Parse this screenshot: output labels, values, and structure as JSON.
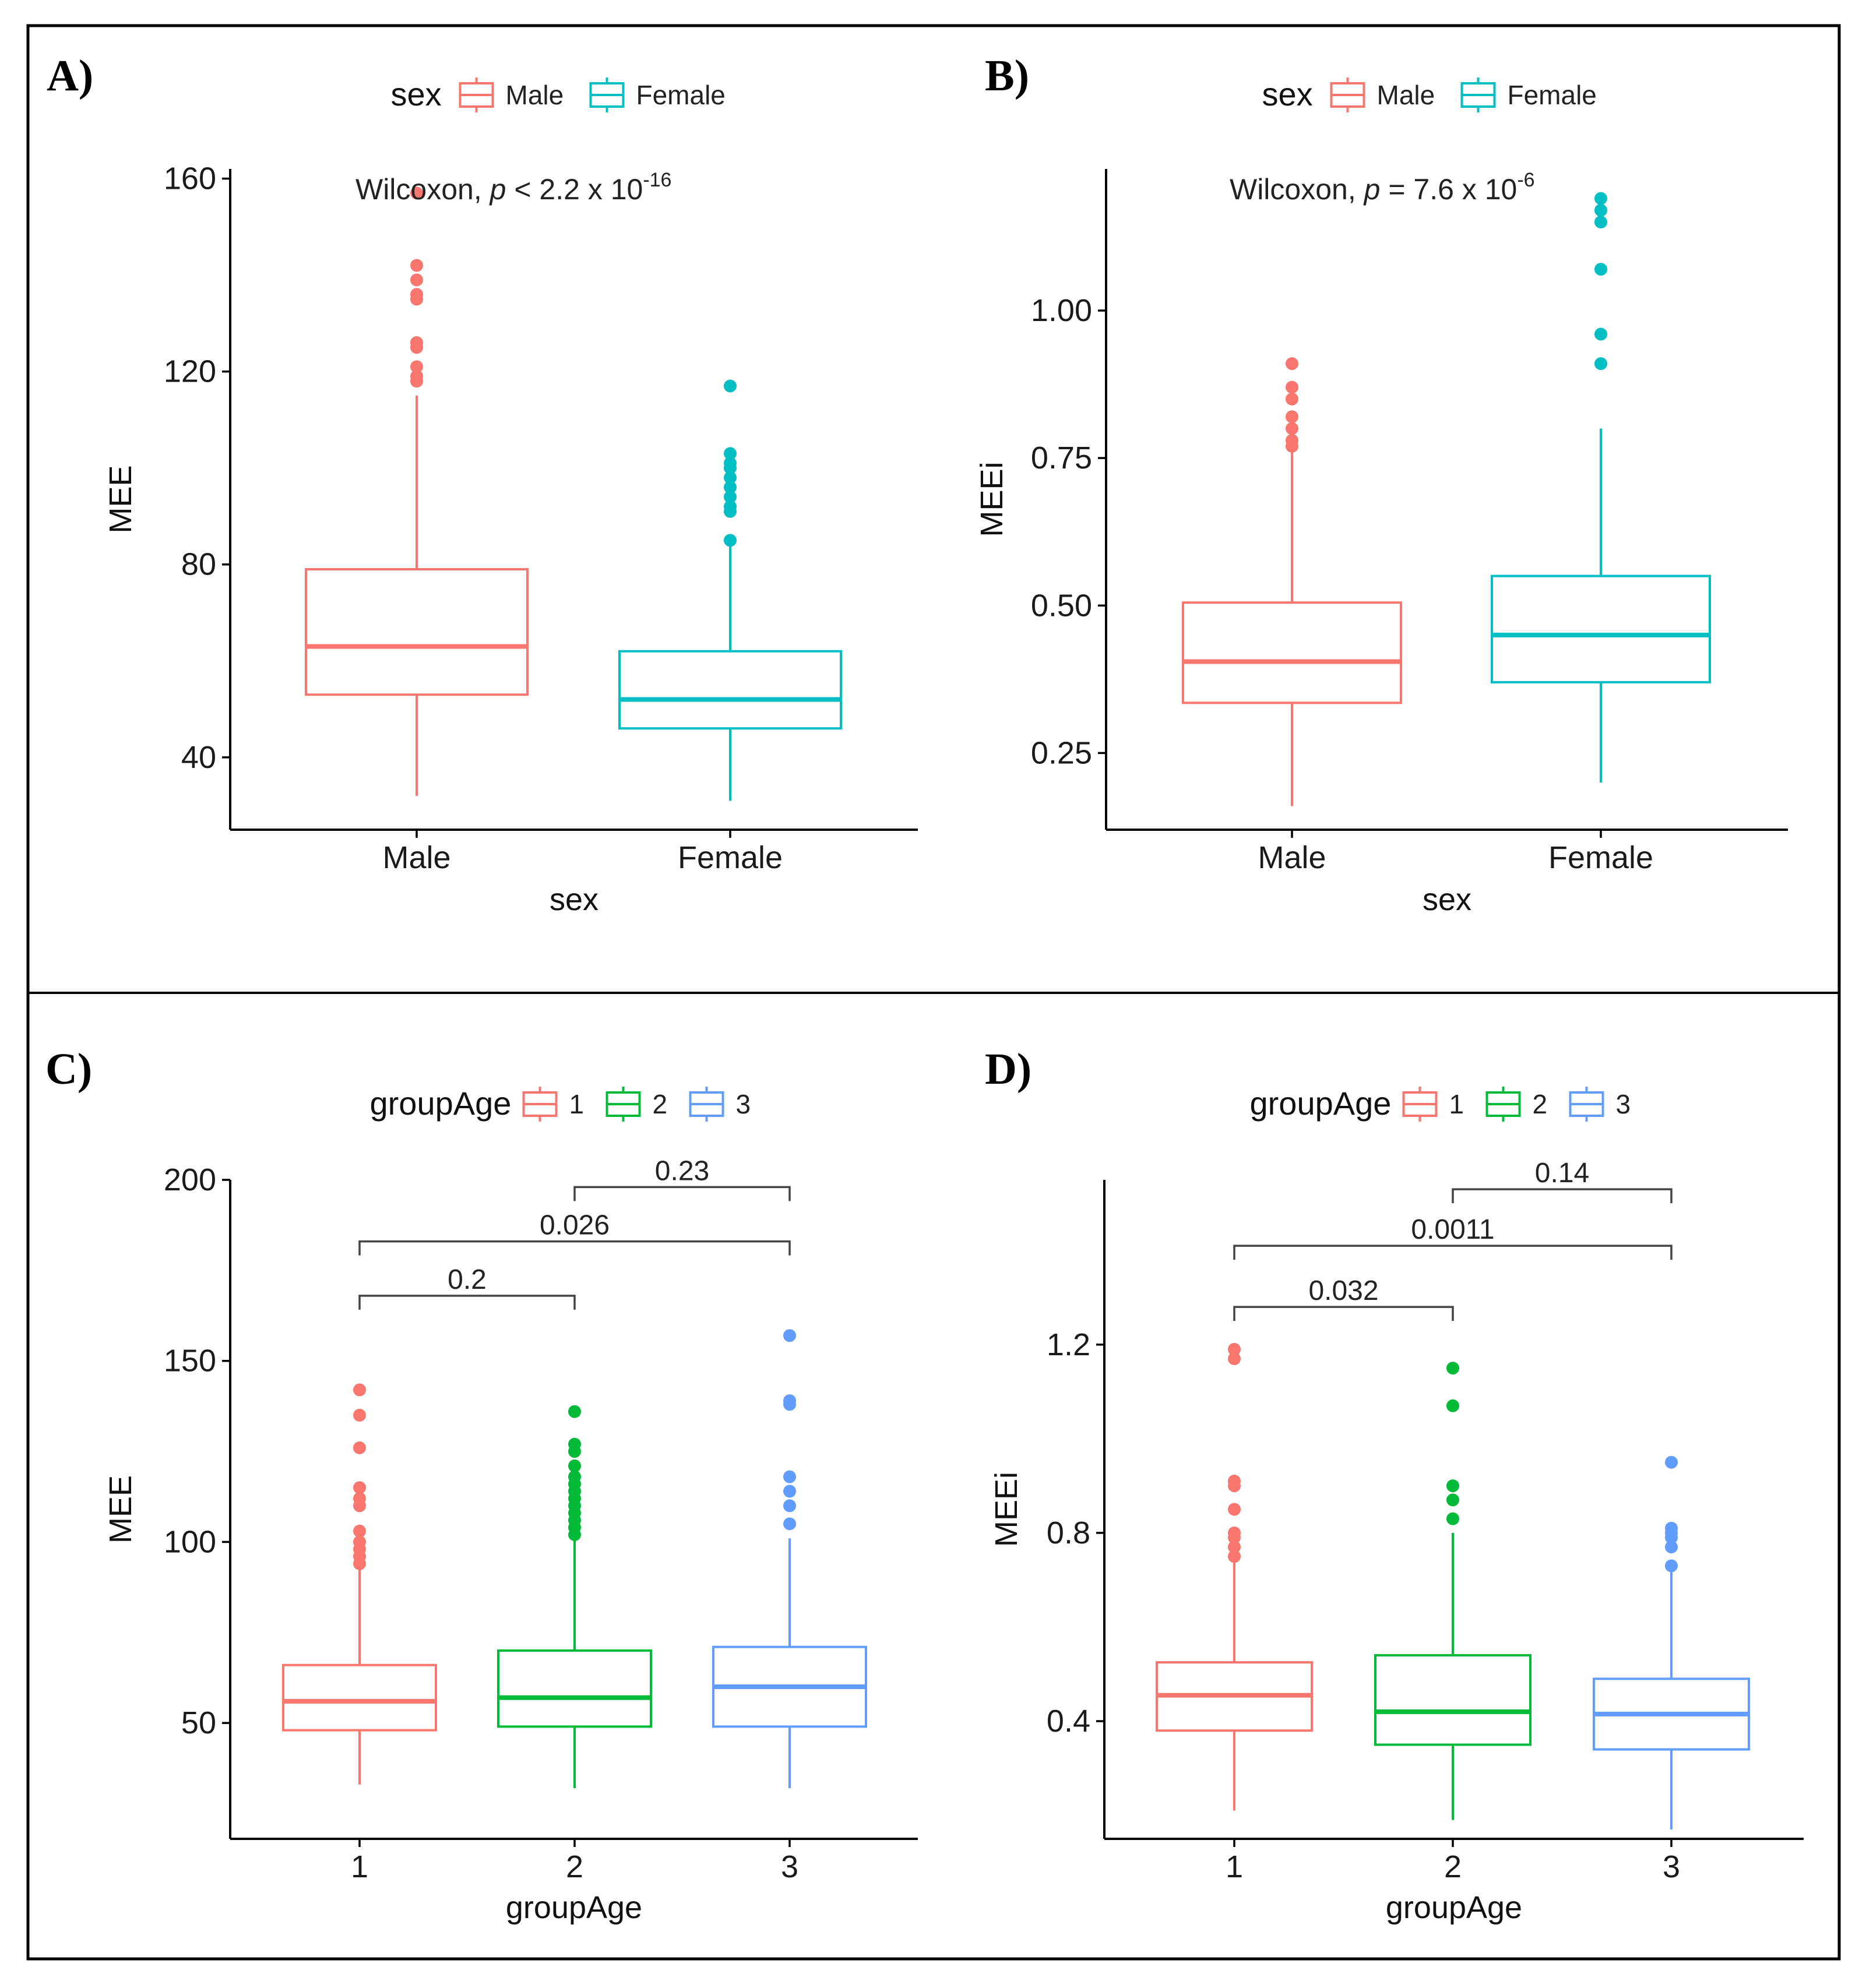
{
  "colors": {
    "Male": "#F8766D",
    "Female": "#00BFC4",
    "1": "#F8766D",
    "2": "#00BA38",
    "3": "#619CFF"
  },
  "chart_data": [
    {
      "panel": "A)",
      "type": "box",
      "xlabel": "sex",
      "ylabel": "MEE",
      "ylim": [
        25,
        162
      ],
      "yticks": [
        40,
        80,
        120,
        160
      ],
      "ytick_labels": [
        "40",
        "80",
        "120",
        "160"
      ],
      "legend": {
        "title": "sex",
        "entries": [
          "Male",
          "Female"
        ],
        "position": "top"
      },
      "annotation": {
        "test": "Wilcoxon,",
        "p_prefix": "p",
        "p_text": " < 2.2 x 10",
        "p_exp": "-16"
      },
      "categories": [
        "Male",
        "Female"
      ],
      "series": [
        {
          "name": "Male",
          "whisker_low": 32,
          "q1": 53,
          "median": 63,
          "q3": 79,
          "whisker_high": 115,
          "outliers": [
            118,
            119,
            121,
            125,
            126,
            135,
            136,
            139,
            142,
            157
          ]
        },
        {
          "name": "Female",
          "whisker_low": 31,
          "q1": 46,
          "median": 52,
          "q3": 62,
          "whisker_high": 85,
          "outliers": [
            85,
            91,
            92,
            94,
            96,
            98,
            100,
            101,
            103,
            117
          ]
        }
      ],
      "brackets": []
    },
    {
      "panel": "B)",
      "type": "box",
      "xlabel": "sex",
      "ylabel": "MEEi",
      "ylim": [
        0.12,
        1.24
      ],
      "yticks": [
        0.25,
        0.5,
        0.75,
        1.0
      ],
      "ytick_labels": [
        "0.25",
        "0.50",
        "0.75",
        "1.00"
      ],
      "legend": {
        "title": "sex",
        "entries": [
          "Male",
          "Female"
        ],
        "position": "top"
      },
      "annotation": {
        "test": "Wilcoxon,",
        "p_prefix": "p",
        "p_text": " = 7.6 x 10",
        "p_exp": "-6"
      },
      "categories": [
        "Male",
        "Female"
      ],
      "series": [
        {
          "name": "Male",
          "whisker_low": 0.16,
          "q1": 0.335,
          "median": 0.405,
          "q3": 0.505,
          "whisker_high": 0.76,
          "outliers": [
            0.77,
            0.78,
            0.8,
            0.82,
            0.85,
            0.87,
            0.91
          ]
        },
        {
          "name": "Female",
          "whisker_low": 0.2,
          "q1": 0.37,
          "median": 0.45,
          "q3": 0.55,
          "whisker_high": 0.8,
          "outliers": [
            0.91,
            0.96,
            1.07,
            1.15,
            1.17,
            1.19
          ]
        }
      ],
      "brackets": []
    },
    {
      "panel": "C)",
      "type": "box",
      "xlabel": "groupAge",
      "ylabel": "MEE",
      "ylim": [
        18,
        200
      ],
      "yticks": [
        50,
        100,
        150,
        200
      ],
      "ytick_labels": [
        "50",
        "100",
        "150",
        "200"
      ],
      "legend": {
        "title": "groupAge",
        "entries": [
          "1",
          "2",
          "3"
        ],
        "position": "top"
      },
      "annotation": null,
      "categories": [
        "1",
        "2",
        "3"
      ],
      "series": [
        {
          "name": "1",
          "whisker_low": 33,
          "q1": 48,
          "median": 56,
          "q3": 66,
          "whisker_high": 93,
          "outliers": [
            94,
            96,
            98,
            100,
            103,
            110,
            112,
            115,
            126,
            135,
            142
          ]
        },
        {
          "name": "2",
          "whisker_low": 32,
          "q1": 49,
          "median": 57,
          "q3": 70,
          "whisker_high": 101,
          "outliers": [
            102,
            104,
            106,
            108,
            110,
            112,
            114,
            116,
            118,
            121,
            125,
            127,
            136
          ]
        },
        {
          "name": "3",
          "whisker_low": 32,
          "q1": 49,
          "median": 60,
          "q3": 71,
          "whisker_high": 101,
          "outliers": [
            105,
            110,
            114,
            118,
            138,
            139,
            157
          ]
        }
      ],
      "brackets": [
        {
          "from": 0,
          "to": 1,
          "label": "0.2",
          "y": 168
        },
        {
          "from": 0,
          "to": 2,
          "label": "0.026",
          "y": 183
        },
        {
          "from": 1,
          "to": 2,
          "label": "0.23",
          "y": 198
        }
      ]
    },
    {
      "panel": "D)",
      "type": "box",
      "xlabel": "groupAge",
      "ylabel": "MEEi",
      "ylim": [
        0.15,
        1.55
      ],
      "yticks": [
        0.4,
        0.8,
        1.2
      ],
      "ytick_labels": [
        "0.4",
        "0.8",
        "1.2"
      ],
      "legend": {
        "title": "groupAge",
        "entries": [
          "1",
          "2",
          "3"
        ],
        "position": "top"
      },
      "annotation": null,
      "categories": [
        "1",
        "2",
        "3"
      ],
      "series": [
        {
          "name": "1",
          "whisker_low": 0.21,
          "q1": 0.38,
          "median": 0.455,
          "q3": 0.525,
          "whisker_high": 0.74,
          "outliers": [
            0.75,
            0.77,
            0.79,
            0.8,
            0.85,
            0.9,
            0.91,
            1.17,
            1.19
          ]
        },
        {
          "name": "2",
          "whisker_low": 0.19,
          "q1": 0.35,
          "median": 0.42,
          "q3": 0.54,
          "whisker_high": 0.8,
          "outliers": [
            0.83,
            0.87,
            0.9,
            1.07,
            1.15
          ]
        },
        {
          "name": "3",
          "whisker_low": 0.17,
          "q1": 0.34,
          "median": 0.415,
          "q3": 0.49,
          "whisker_high": 0.72,
          "outliers": [
            0.73,
            0.77,
            0.79,
            0.8,
            0.81,
            0.95
          ]
        }
      ],
      "brackets": [
        {
          "from": 0,
          "to": 1,
          "label": "0.032",
          "y": 1.28
        },
        {
          "from": 0,
          "to": 2,
          "label": "0.0011",
          "y": 1.41
        },
        {
          "from": 1,
          "to": 2,
          "label": "0.14",
          "y": 1.53
        }
      ]
    }
  ]
}
